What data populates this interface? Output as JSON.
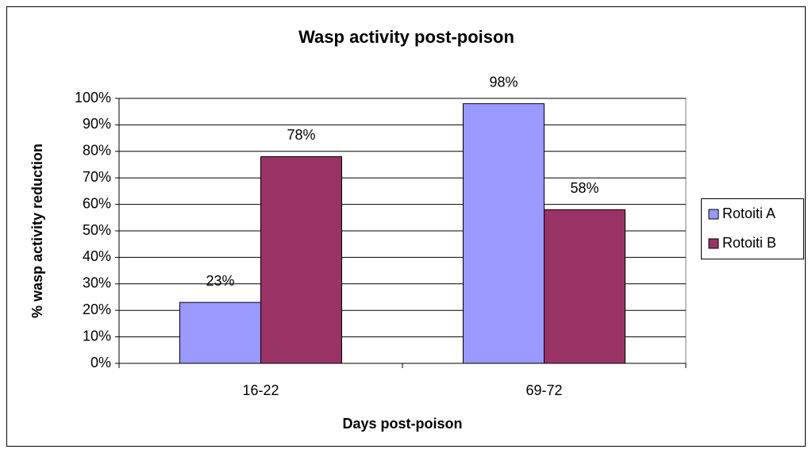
{
  "chart_data": {
    "type": "bar",
    "title": "Wasp activity post-poison",
    "x_label": "Days post-poison",
    "y_label": "% wasp activity reduction",
    "categories": [
      "16-22",
      "69-72"
    ],
    "series": [
      {
        "name": "Rotoiti A",
        "color": "#9999ff",
        "values": [
          23,
          98
        ],
        "value_labels": [
          "23%",
          "98%"
        ]
      },
      {
        "name": "Rotoiti B",
        "color": "#993366",
        "values": [
          78,
          58
        ],
        "value_labels": [
          "78%",
          "58%"
        ]
      }
    ],
    "ylim": [
      0,
      100
    ],
    "yticks": [
      {
        "value": 0,
        "label": "0%"
      },
      {
        "value": 10,
        "label": "10%"
      },
      {
        "value": 20,
        "label": "20%"
      },
      {
        "value": 30,
        "label": "30%"
      },
      {
        "value": 40,
        "label": "40%"
      },
      {
        "value": 50,
        "label": "50%"
      },
      {
        "value": 60,
        "label": "60%"
      },
      {
        "value": 70,
        "label": "70%"
      },
      {
        "value": 80,
        "label": "80%"
      },
      {
        "value": 90,
        "label": "90%"
      },
      {
        "value": 100,
        "label": "100%"
      }
    ],
    "grid": true,
    "legend": "right"
  }
}
